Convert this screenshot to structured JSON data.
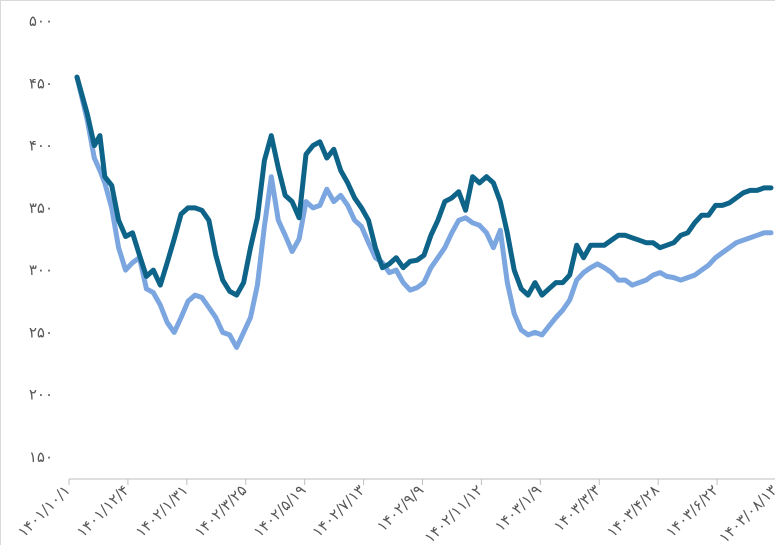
{
  "chart_data": {
    "type": "line",
    "title": "",
    "xlabel": "",
    "ylabel": "",
    "ylim": [
      150,
      500
    ],
    "y_ticks": [
      "۵۰۰",
      "۴۵۰",
      "۴۰۰",
      "۳۵۰",
      "۳۰۰",
      "۲۵۰",
      "۲۰۰",
      "۱۵۰"
    ],
    "y_tick_values": [
      500,
      450,
      400,
      350,
      300,
      250,
      200,
      150
    ],
    "x_tick_labels": [
      "۱۴۰۱/۱۰/۱",
      "۱۴۰۱/۱۲/۴",
      "۱۴۰۲/۱/۳۱",
      "۱۴۰۲/۳/۲۵",
      "۱۴۰۲/۵/۱۹",
      "۱۴۰۲/۷/۱۳",
      "۱۴۰۲/۹/۹",
      "۱۴۰۲/۱۱/۱۲",
      "۱۴۰۳/۱/۹",
      "۱۴۰۳/۳/۳",
      "۱۴۰۳/۴/۲۸",
      "۱۴۰۳/۶/۲۲",
      "۱۴۰۳/۰۸/۱۳"
    ],
    "x_range": [
      0,
      100
    ],
    "grid": false,
    "legend": "none",
    "series": [
      {
        "color": "#0e6388",
        "values": [
          [
            0,
            455
          ],
          [
            1.5,
            425
          ],
          [
            2.5,
            400
          ],
          [
            3.3,
            408
          ],
          [
            4,
            375
          ],
          [
            5,
            368
          ],
          [
            6,
            340
          ],
          [
            7,
            327
          ],
          [
            8,
            330
          ],
          [
            9,
            312
          ],
          [
            10,
            295
          ],
          [
            11,
            300
          ],
          [
            12,
            288
          ],
          [
            13,
            306
          ],
          [
            14,
            325
          ],
          [
            15,
            345
          ],
          [
            16,
            350
          ],
          [
            17,
            350
          ],
          [
            18,
            348
          ],
          [
            19,
            340
          ],
          [
            20,
            312
          ],
          [
            21,
            292
          ],
          [
            22,
            283
          ],
          [
            23,
            280
          ],
          [
            24,
            290
          ],
          [
            25,
            318
          ],
          [
            26,
            342
          ],
          [
            27,
            388
          ],
          [
            28,
            408
          ],
          [
            29,
            382
          ],
          [
            30,
            360
          ],
          [
            31,
            355
          ],
          [
            32,
            342
          ],
          [
            33,
            393
          ],
          [
            34,
            400
          ],
          [
            35,
            403
          ],
          [
            36,
            390
          ],
          [
            37,
            397
          ],
          [
            38,
            380
          ],
          [
            39,
            370
          ],
          [
            40,
            358
          ],
          [
            41,
            350
          ],
          [
            42,
            340
          ],
          [
            43,
            318
          ],
          [
            44,
            302
          ],
          [
            45,
            305
          ],
          [
            46,
            310
          ],
          [
            47,
            302
          ],
          [
            48,
            307
          ],
          [
            49,
            308
          ],
          [
            50,
            312
          ],
          [
            51,
            328
          ],
          [
            52,
            340
          ],
          [
            53,
            355
          ],
          [
            54,
            358
          ],
          [
            55,
            363
          ],
          [
            56,
            348
          ],
          [
            57,
            375
          ],
          [
            58,
            370
          ],
          [
            59,
            375
          ],
          [
            60,
            370
          ],
          [
            61,
            355
          ],
          [
            62,
            330
          ],
          [
            63,
            300
          ],
          [
            64,
            285
          ],
          [
            65,
            280
          ],
          [
            66,
            290
          ],
          [
            67,
            280
          ],
          [
            68,
            285
          ],
          [
            69,
            290
          ],
          [
            70,
            290
          ],
          [
            71,
            296
          ],
          [
            72,
            320
          ],
          [
            73,
            310
          ],
          [
            74,
            320
          ],
          [
            75,
            320
          ],
          [
            76,
            320
          ],
          [
            77,
            324
          ],
          [
            78,
            328
          ],
          [
            79,
            328
          ],
          [
            80,
            326
          ],
          [
            81,
            324
          ],
          [
            82,
            322
          ],
          [
            83,
            322
          ],
          [
            84,
            318
          ],
          [
            85,
            320
          ],
          [
            86,
            322
          ],
          [
            87,
            328
          ],
          [
            88,
            330
          ],
          [
            89,
            338
          ],
          [
            90,
            344
          ],
          [
            91,
            344
          ],
          [
            92,
            352
          ],
          [
            93,
            352
          ],
          [
            94,
            354
          ],
          [
            95,
            358
          ],
          [
            96,
            362
          ],
          [
            97,
            364
          ],
          [
            98,
            364
          ],
          [
            99,
            366
          ],
          [
            100,
            366
          ]
        ]
      },
      {
        "color": "#7ba6e0",
        "values": [
          [
            0,
            455
          ],
          [
            1.5,
            420
          ],
          [
            2.5,
            390
          ],
          [
            3.3,
            380
          ],
          [
            4,
            370
          ],
          [
            5,
            350
          ],
          [
            6,
            318
          ],
          [
            7,
            300
          ],
          [
            8,
            306
          ],
          [
            9,
            310
          ],
          [
            10,
            285
          ],
          [
            11,
            282
          ],
          [
            12,
            272
          ],
          [
            13,
            258
          ],
          [
            14,
            250
          ],
          [
            15,
            262
          ],
          [
            16,
            275
          ],
          [
            17,
            280
          ],
          [
            18,
            278
          ],
          [
            19,
            270
          ],
          [
            20,
            262
          ],
          [
            21,
            250
          ],
          [
            22,
            248
          ],
          [
            23,
            238
          ],
          [
            24,
            250
          ],
          [
            25,
            262
          ],
          [
            26,
            288
          ],
          [
            27,
            335
          ],
          [
            28,
            375
          ],
          [
            29,
            340
          ],
          [
            30,
            328
          ],
          [
            31,
            315
          ],
          [
            32,
            325
          ],
          [
            33,
            355
          ],
          [
            34,
            350
          ],
          [
            35,
            352
          ],
          [
            36,
            365
          ],
          [
            37,
            355
          ],
          [
            38,
            360
          ],
          [
            39,
            352
          ],
          [
            40,
            340
          ],
          [
            41,
            335
          ],
          [
            42,
            322
          ],
          [
            43,
            310
          ],
          [
            44,
            306
          ],
          [
            45,
            298
          ],
          [
            46,
            300
          ],
          [
            47,
            290
          ],
          [
            48,
            284
          ],
          [
            49,
            286
          ],
          [
            50,
            290
          ],
          [
            51,
            302
          ],
          [
            52,
            310
          ],
          [
            53,
            318
          ],
          [
            54,
            330
          ],
          [
            55,
            340
          ],
          [
            56,
            342
          ],
          [
            57,
            338
          ],
          [
            58,
            336
          ],
          [
            59,
            330
          ],
          [
            60,
            318
          ],
          [
            61,
            332
          ],
          [
            62,
            290
          ],
          [
            63,
            265
          ],
          [
            64,
            252
          ],
          [
            65,
            248
          ],
          [
            66,
            250
          ],
          [
            67,
            248
          ],
          [
            68,
            255
          ],
          [
            69,
            262
          ],
          [
            70,
            268
          ],
          [
            71,
            276
          ],
          [
            72,
            292
          ],
          [
            73,
            298
          ],
          [
            74,
            302
          ],
          [
            75,
            305
          ],
          [
            76,
            302
          ],
          [
            77,
            298
          ],
          [
            78,
            292
          ],
          [
            79,
            292
          ],
          [
            80,
            288
          ],
          [
            81,
            290
          ],
          [
            82,
            292
          ],
          [
            83,
            296
          ],
          [
            84,
            298
          ],
          [
            85,
            295
          ],
          [
            86,
            294
          ],
          [
            87,
            292
          ],
          [
            88,
            294
          ],
          [
            89,
            296
          ],
          [
            90,
            300
          ],
          [
            91,
            304
          ],
          [
            92,
            310
          ],
          [
            93,
            314
          ],
          [
            94,
            318
          ],
          [
            95,
            322
          ],
          [
            96,
            324
          ],
          [
            97,
            326
          ],
          [
            98,
            328
          ],
          [
            99,
            330
          ],
          [
            100,
            330
          ]
        ]
      }
    ]
  }
}
